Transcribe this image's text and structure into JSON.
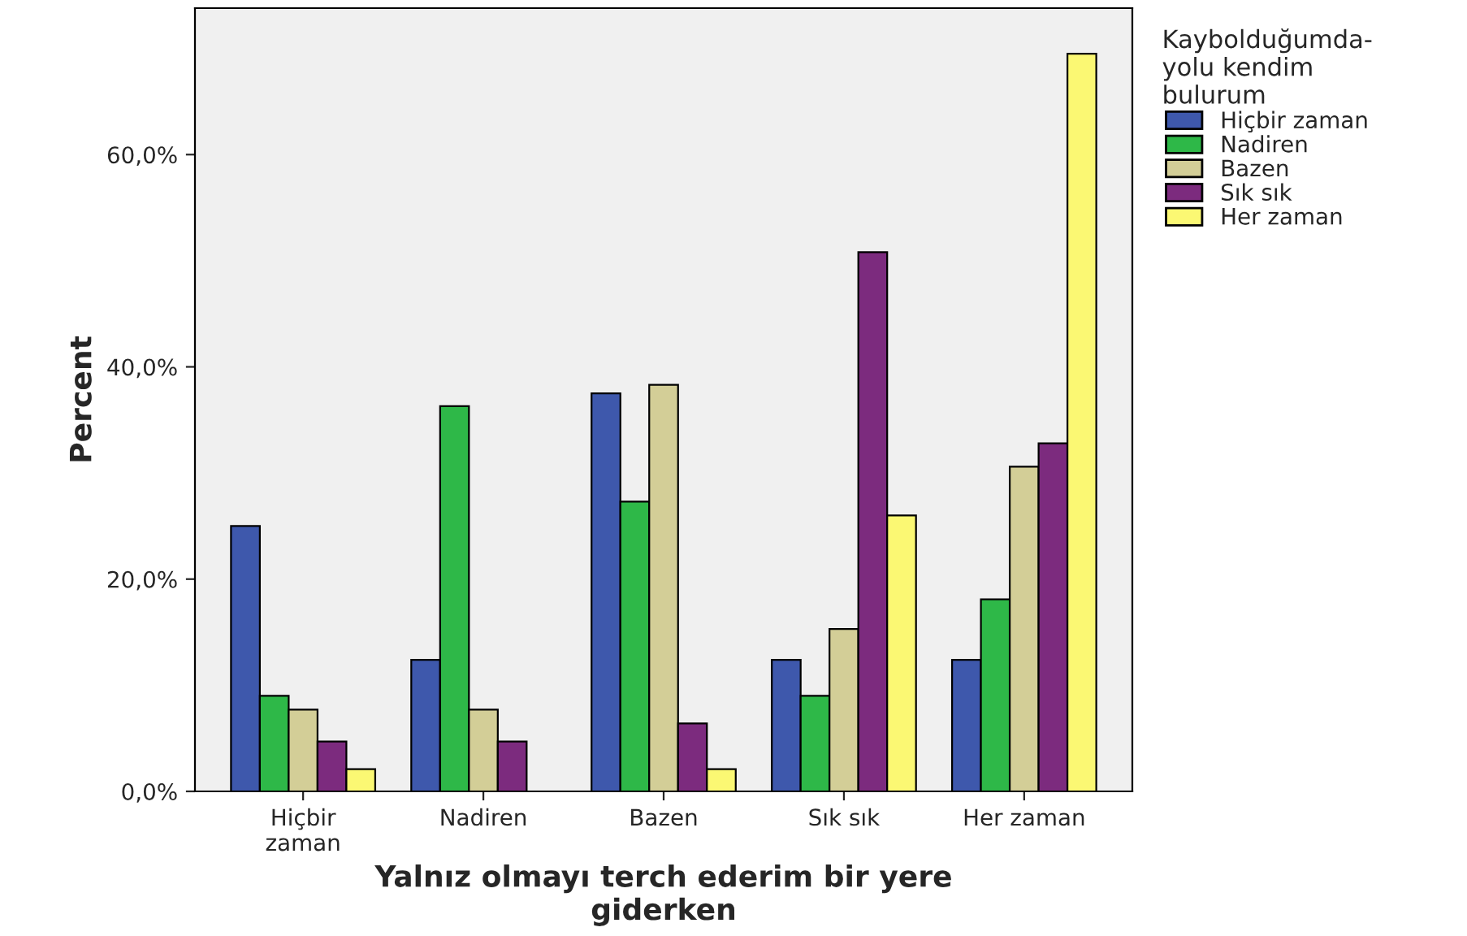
{
  "chart_data": {
    "type": "bar",
    "xlabel": "Yalnız olmayı terch ederim bir yere\ngiderken",
    "ylabel": "Percent",
    "legend_title": "Kaybolduğumda-\nyolu kendim\nbulurum",
    "categories": [
      "Hiçbir\nzaman",
      "Nadiren",
      "Bazen",
      "Sık sık",
      "Her zaman"
    ],
    "series": [
      {
        "name": "Hiçbir zaman",
        "color": "#3e58ac",
        "values": [
          25.0,
          12.4,
          37.5,
          12.4,
          12.4
        ]
      },
      {
        "name": "Nadiren",
        "color": "#2eb848",
        "values": [
          9.0,
          36.3,
          27.3,
          9.0,
          18.1
        ]
      },
      {
        "name": "Bazen",
        "color": "#d3ce97",
        "values": [
          7.7,
          7.7,
          38.3,
          15.3,
          30.6
        ]
      },
      {
        "name": "Sık sık",
        "color": "#7c2b7e",
        "values": [
          4.7,
          4.7,
          6.4,
          50.8,
          32.8
        ]
      },
      {
        "name": "Her zaman",
        "color": "#fbf873",
        "values": [
          2.1,
          null,
          2.1,
          26.0,
          69.5
        ]
      }
    ],
    "ylim": [
      0,
      73.8
    ],
    "yticks": [
      {
        "value": 0,
        "label": "0,0%"
      },
      {
        "value": 20,
        "label": "20,0%"
      },
      {
        "value": 40,
        "label": "40,0%"
      },
      {
        "value": 60,
        "label": "60,0%"
      }
    ],
    "grid": false,
    "legend": "right"
  }
}
